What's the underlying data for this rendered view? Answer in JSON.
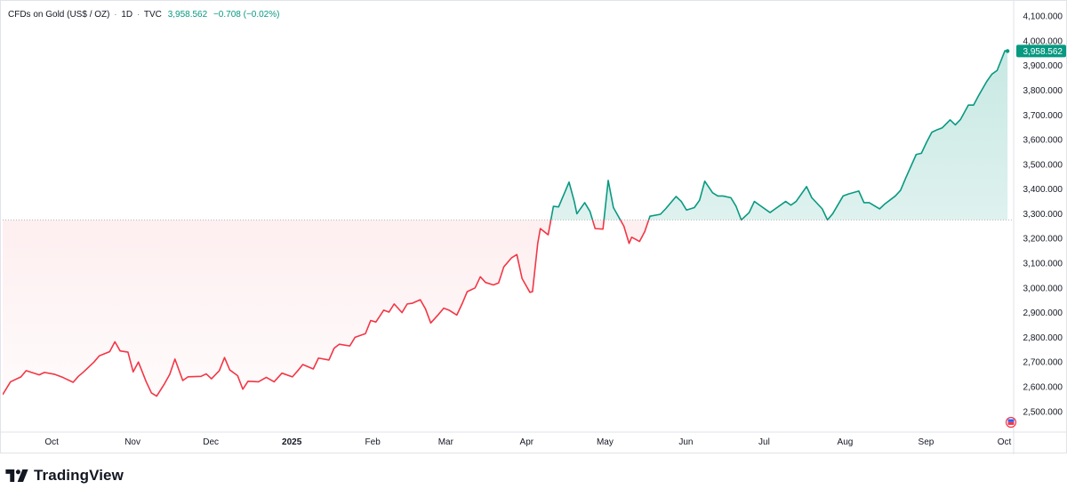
{
  "header": {
    "symbol": "CFDs on Gold (US$ / OZ)",
    "sep1": "·",
    "interval": "1D",
    "sep2": "·",
    "source": "TVC",
    "price": "3,958.562",
    "change": "−0.708 (−0.02%)"
  },
  "brand": {
    "name": "TradingView",
    "icon": "tradingview-logo-icon"
  },
  "colors": {
    "up": "#089981",
    "down": "#f23645",
    "grid": "#e0e3eb",
    "baseline": "#b2b5be"
  },
  "chart_data": {
    "type": "area",
    "style": "baseline",
    "baseline_value": 3275,
    "y_axis_side": "right",
    "ylim": [
      2420,
      4140
    ],
    "yticks": [
      2500,
      2600,
      2700,
      2800,
      2900,
      3000,
      3100,
      3200,
      3300,
      3400,
      3500,
      3600,
      3700,
      3800,
      3900,
      4000,
      4100
    ],
    "ytick_labels": [
      "2,500.000",
      "2,600.000",
      "2,700.000",
      "2,800.000",
      "2,900.000",
      "3,000.000",
      "3,100.000",
      "3,200.000",
      "3,300.000",
      "3,400.000",
      "3,500.000",
      "3,600.000",
      "3,700.000",
      "3,800.000",
      "3,900.000",
      "4,000.000",
      "4,100.000"
    ],
    "xlim": [
      "2024-09-17",
      "2025-10-09"
    ],
    "xticks": [
      {
        "date": "2024-10-01",
        "label": "Oct",
        "bold": false
      },
      {
        "date": "2024-11-01",
        "label": "Nov",
        "bold": false
      },
      {
        "date": "2024-12-01",
        "label": "Dec",
        "bold": false
      },
      {
        "date": "2025-01-01",
        "label": "2025",
        "bold": true
      },
      {
        "date": "2025-02-01",
        "label": "Feb",
        "bold": false
      },
      {
        "date": "2025-03-01",
        "label": "Mar",
        "bold": false
      },
      {
        "date": "2025-04-01",
        "label": "Apr",
        "bold": false
      },
      {
        "date": "2025-05-01",
        "label": "May",
        "bold": false
      },
      {
        "date": "2025-06-01",
        "label": "Jun",
        "bold": false
      },
      {
        "date": "2025-07-01",
        "label": "Jul",
        "bold": false
      },
      {
        "date": "2025-08-01",
        "label": "Aug",
        "bold": false
      },
      {
        "date": "2025-09-01",
        "label": "Sep",
        "bold": false
      },
      {
        "date": "2025-10-01",
        "label": "Oct",
        "bold": false
      }
    ],
    "last_price_label": "3,958.562",
    "series": [
      {
        "values": [
          [
            "2024-09-17",
            2568
          ],
          [
            "2024-09-20",
            2620
          ],
          [
            "2024-09-24",
            2640
          ],
          [
            "2024-09-26",
            2665
          ],
          [
            "2024-10-01",
            2648
          ],
          [
            "2024-10-03",
            2658
          ],
          [
            "2024-10-07",
            2650
          ],
          [
            "2024-10-10",
            2638
          ],
          [
            "2024-10-14",
            2618
          ],
          [
            "2024-10-16",
            2642
          ],
          [
            "2024-10-18",
            2660
          ],
          [
            "2024-10-22",
            2700
          ],
          [
            "2024-10-24",
            2725
          ],
          [
            "2024-10-28",
            2742
          ],
          [
            "2024-10-30",
            2782
          ],
          [
            "2024-11-01",
            2745
          ],
          [
            "2024-11-04",
            2740
          ],
          [
            "2024-11-06",
            2660
          ],
          [
            "2024-11-08",
            2700
          ],
          [
            "2024-11-11",
            2620
          ],
          [
            "2024-11-13",
            2575
          ],
          [
            "2024-11-15",
            2562
          ],
          [
            "2024-11-18",
            2612
          ],
          [
            "2024-11-20",
            2650
          ],
          [
            "2024-11-22",
            2712
          ],
          [
            "2024-11-25",
            2625
          ],
          [
            "2024-11-27",
            2640
          ],
          [
            "2024-12-02",
            2642
          ],
          [
            "2024-12-04",
            2652
          ],
          [
            "2024-12-06",
            2632
          ],
          [
            "2024-12-09",
            2665
          ],
          [
            "2024-12-11",
            2718
          ],
          [
            "2024-12-13",
            2668
          ],
          [
            "2024-12-16",
            2645
          ],
          [
            "2024-12-18",
            2590
          ],
          [
            "2024-12-20",
            2622
          ],
          [
            "2024-12-24",
            2620
          ],
          [
            "2024-12-27",
            2638
          ],
          [
            "2024-12-30",
            2620
          ],
          [
            "2025-01-02",
            2655
          ],
          [
            "2025-01-06",
            2640
          ],
          [
            "2025-01-08",
            2664
          ],
          [
            "2025-01-10",
            2690
          ],
          [
            "2025-01-14",
            2672
          ],
          [
            "2025-01-16",
            2716
          ],
          [
            "2025-01-20",
            2708
          ],
          [
            "2025-01-22",
            2756
          ],
          [
            "2025-01-24",
            2772
          ],
          [
            "2025-01-28",
            2765
          ],
          [
            "2025-01-30",
            2800
          ],
          [
            "2025-02-03",
            2815
          ],
          [
            "2025-02-05",
            2868
          ],
          [
            "2025-02-07",
            2862
          ],
          [
            "2025-02-10",
            2910
          ],
          [
            "2025-02-12",
            2902
          ],
          [
            "2025-02-14",
            2935
          ],
          [
            "2025-02-17",
            2900
          ],
          [
            "2025-02-19",
            2935
          ],
          [
            "2025-02-21",
            2938
          ],
          [
            "2025-02-24",
            2952
          ],
          [
            "2025-02-26",
            2915
          ],
          [
            "2025-02-28",
            2858
          ],
          [
            "2025-03-03",
            2893
          ],
          [
            "2025-03-05",
            2918
          ],
          [
            "2025-03-07",
            2910
          ],
          [
            "2025-03-10",
            2890
          ],
          [
            "2025-03-12",
            2935
          ],
          [
            "2025-03-14",
            2985
          ],
          [
            "2025-03-17",
            3000
          ],
          [
            "2025-03-19",
            3045
          ],
          [
            "2025-03-21",
            3022
          ],
          [
            "2025-03-24",
            3012
          ],
          [
            "2025-03-26",
            3020
          ],
          [
            "2025-03-28",
            3085
          ],
          [
            "2025-03-31",
            3122
          ],
          [
            "2025-04-02",
            3135
          ],
          [
            "2025-04-04",
            3038
          ],
          [
            "2025-04-07",
            2982
          ],
          [
            "2025-04-08",
            2985
          ],
          [
            "2025-04-10",
            3180
          ],
          [
            "2025-04-11",
            3240
          ],
          [
            "2025-04-14",
            3215
          ],
          [
            "2025-04-16",
            3330
          ],
          [
            "2025-04-18",
            3328
          ],
          [
            "2025-04-22",
            3428
          ],
          [
            "2025-04-24",
            3350
          ],
          [
            "2025-04-25",
            3300
          ],
          [
            "2025-04-28",
            3345
          ],
          [
            "2025-04-30",
            3310
          ],
          [
            "2025-05-02",
            3240
          ],
          [
            "2025-05-05",
            3238
          ],
          [
            "2025-05-07",
            3435
          ],
          [
            "2025-05-09",
            3325
          ],
          [
            "2025-05-13",
            3250
          ],
          [
            "2025-05-15",
            3180
          ],
          [
            "2025-05-16",
            3205
          ],
          [
            "2025-05-19",
            3188
          ],
          [
            "2025-05-21",
            3228
          ],
          [
            "2025-05-23",
            3290
          ],
          [
            "2025-05-27",
            3298
          ],
          [
            "2025-05-29",
            3320
          ],
          [
            "2025-06-02",
            3370
          ],
          [
            "2025-06-04",
            3350
          ],
          [
            "2025-06-06",
            3315
          ],
          [
            "2025-06-09",
            3325
          ],
          [
            "2025-06-11",
            3355
          ],
          [
            "2025-06-13",
            3432
          ],
          [
            "2025-06-16",
            3385
          ],
          [
            "2025-06-18",
            3372
          ],
          [
            "2025-06-20",
            3372
          ],
          [
            "2025-06-23",
            3365
          ],
          [
            "2025-06-25",
            3330
          ],
          [
            "2025-06-27",
            3275
          ],
          [
            "2025-06-30",
            3305
          ],
          [
            "2025-07-02",
            3350
          ],
          [
            "2025-07-04",
            3335
          ],
          [
            "2025-07-08",
            3305
          ],
          [
            "2025-07-10",
            3320
          ],
          [
            "2025-07-14",
            3350
          ],
          [
            "2025-07-16",
            3335
          ],
          [
            "2025-07-18",
            3350
          ],
          [
            "2025-07-22",
            3410
          ],
          [
            "2025-07-24",
            3365
          ],
          [
            "2025-07-28",
            3320
          ],
          [
            "2025-07-30",
            3275
          ],
          [
            "2025-08-01",
            3300
          ],
          [
            "2025-08-05",
            3372
          ],
          [
            "2025-08-07",
            3380
          ],
          [
            "2025-08-11",
            3392
          ],
          [
            "2025-08-13",
            3345
          ],
          [
            "2025-08-15",
            3345
          ],
          [
            "2025-08-19",
            3320
          ],
          [
            "2025-08-21",
            3340
          ],
          [
            "2025-08-25",
            3372
          ],
          [
            "2025-08-27",
            3395
          ],
          [
            "2025-08-29",
            3445
          ],
          [
            "2025-09-02",
            3540
          ],
          [
            "2025-09-04",
            3545
          ],
          [
            "2025-09-06",
            3590
          ],
          [
            "2025-09-08",
            3630
          ],
          [
            "2025-09-10",
            3640
          ],
          [
            "2025-09-12",
            3648
          ],
          [
            "2025-09-15",
            3680
          ],
          [
            "2025-09-17",
            3660
          ],
          [
            "2025-09-19",
            3682
          ],
          [
            "2025-09-22",
            3740
          ],
          [
            "2025-09-24",
            3740
          ],
          [
            "2025-09-26",
            3780
          ],
          [
            "2025-09-29",
            3835
          ],
          [
            "2025-10-01",
            3865
          ],
          [
            "2025-10-03",
            3880
          ],
          [
            "2025-10-06",
            3960
          ],
          [
            "2025-10-07",
            3958.562
          ]
        ]
      }
    ]
  }
}
